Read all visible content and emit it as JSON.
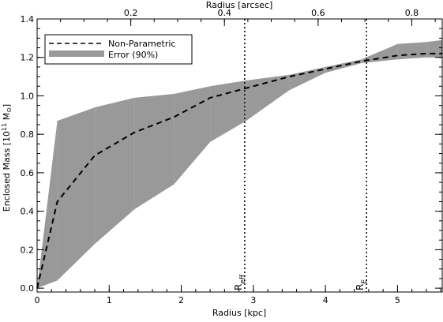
{
  "chart_data": {
    "type": "line",
    "xlabel_bottom": "Radius [kpc]",
    "xlabel_top": "Radius [arcsec]",
    "ylabel": "Enclosed Mass [10",
    "ylabel_sup": "11",
    "ylabel_tail": " M",
    "ylabel_symbol": "⊙",
    "ylabel_close": "]",
    "xlim": [
      0,
      5.62
    ],
    "ylim": [
      -0.02,
      1.4
    ],
    "top_xlim_arcsec": [
      0,
      0.865
    ],
    "x_ticks": [
      0,
      1,
      2,
      3,
      4,
      5
    ],
    "x_tick_labels": [
      "0",
      "1",
      "2",
      "3",
      "4",
      "5"
    ],
    "y_ticks": [
      0.0,
      0.2,
      0.4,
      0.6,
      0.8,
      1.0,
      1.2,
      1.4
    ],
    "y_tick_labels": [
      "0.0",
      "0.2",
      "0.4",
      "0.6",
      "0.8",
      "1.0",
      "1.2",
      "1.4"
    ],
    "top_ticks": [
      0.2,
      0.4,
      0.6,
      0.8
    ],
    "top_tick_labels": [
      "0.2",
      "0.4",
      "0.6",
      "0.8"
    ],
    "series": [
      {
        "name": "Non-Parametric",
        "style": "dashed",
        "color": "#000000",
        "x": [
          0.0,
          0.28,
          0.8,
          1.35,
          1.9,
          2.4,
          2.9,
          3.5,
          4.0,
          4.5,
          5.0,
          5.4,
          5.62
        ],
        "y": [
          0.0,
          0.45,
          0.69,
          0.81,
          0.89,
          0.99,
          1.04,
          1.1,
          1.14,
          1.18,
          1.21,
          1.22,
          1.22
        ]
      }
    ],
    "band": {
      "name": "Error (90%)",
      "color": "#999999",
      "x": [
        0.0,
        0.28,
        0.8,
        1.35,
        1.9,
        2.4,
        2.9,
        3.5,
        4.0,
        4.5,
        5.0,
        5.4,
        5.62
      ],
      "upper": [
        0.0,
        0.87,
        0.94,
        0.99,
        1.01,
        1.05,
        1.08,
        1.11,
        1.15,
        1.19,
        1.27,
        1.28,
        1.29
      ],
      "lower": [
        0.0,
        0.04,
        0.23,
        0.41,
        0.54,
        0.76,
        0.87,
        1.03,
        1.12,
        1.17,
        1.19,
        1.2,
        1.2
      ]
    },
    "vlines": [
      {
        "x": 2.88,
        "label": "R",
        "sub": "eff",
        "style": "dotted"
      },
      {
        "x": 4.57,
        "label": "R",
        "sub": "E",
        "style": "dotted"
      }
    ],
    "legend": {
      "position": "top-left",
      "entries": [
        "Non-Parametric",
        "Error (90%)"
      ]
    }
  }
}
